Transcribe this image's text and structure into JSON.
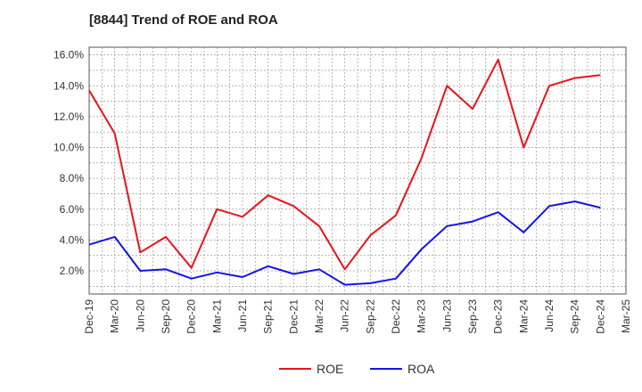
{
  "chart_data": {
    "type": "line",
    "title": "[8844]  Trend of ROE and ROA",
    "xlabel": "",
    "ylabel": "",
    "categories": [
      "Dec-19",
      "Mar-20",
      "Jun-20",
      "Sep-20",
      "Dec-20",
      "Mar-21",
      "Jun-21",
      "Sep-21",
      "Dec-21",
      "Mar-22",
      "Jun-22",
      "Sep-22",
      "Dec-22",
      "Mar-23",
      "Jun-23",
      "Sep-23",
      "Dec-23",
      "Mar-24",
      "Jun-24",
      "Sep-24",
      "Dec-24",
      "Mar-25"
    ],
    "series": [
      {
        "name": "ROE",
        "color": "#e8141a",
        "values": [
          13.7,
          10.9,
          3.2,
          4.2,
          2.2,
          6.0,
          5.5,
          6.9,
          6.2,
          4.9,
          2.1,
          4.3,
          5.6,
          9.3,
          14.0,
          12.5,
          15.7,
          10.0,
          14.0,
          14.5,
          14.7,
          null
        ]
      },
      {
        "name": "ROA",
        "color": "#1414e6",
        "values": [
          3.7,
          4.2,
          2.0,
          2.1,
          1.5,
          1.9,
          1.6,
          2.3,
          1.8,
          2.1,
          1.1,
          1.2,
          1.5,
          3.4,
          4.9,
          5.2,
          5.8,
          4.5,
          6.2,
          6.5,
          6.1,
          null
        ]
      }
    ],
    "y_ticks": [
      "2.0%",
      "4.0%",
      "6.0%",
      "8.0%",
      "10.0%",
      "12.0%",
      "14.0%",
      "16.0%"
    ],
    "ylim": [
      0.5,
      16.5
    ],
    "grid": true,
    "legend_position": "bottom-center"
  }
}
